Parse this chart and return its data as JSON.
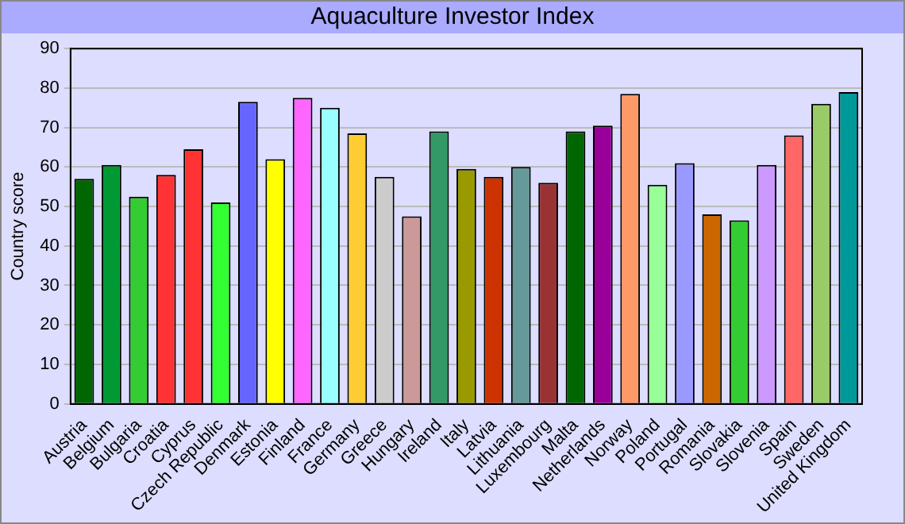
{
  "chart_data": {
    "type": "bar",
    "title": "Aquaculture Investor Index",
    "ylabel": "Country score",
    "categories": [
      "Austria",
      "Belgium",
      "Bulgaria",
      "Croatia",
      "Cyprus",
      "Czech Republic",
      "Denmark",
      "Estonia",
      "Finland",
      "France",
      "Germany",
      "Greece",
      "Hungary",
      "Ireland",
      "Italy",
      "Latvia",
      "Lithuania",
      "Luxembourg",
      "Malta",
      "Netherlands",
      "Norway",
      "Poland",
      "Portugal",
      "Romania",
      "Slovakia",
      "Slovenia",
      "Spain",
      "Sweden",
      "United Kingdom"
    ],
    "values": [
      57,
      60.5,
      52.5,
      58,
      64.5,
      51,
      76.5,
      62,
      77.5,
      75,
      68.5,
      57.5,
      47.5,
      69,
      59.5,
      57.5,
      60,
      56,
      69,
      70.5,
      78.5,
      55.5,
      61,
      48,
      46.5,
      60.5,
      68,
      76,
      79
    ],
    "colors": [
      "#006600",
      "#009933",
      "#33cc33",
      "#ff3333",
      "#ff3333",
      "#33ff33",
      "#6666ff",
      "#ffff00",
      "#ff66ff",
      "#99ffff",
      "#ffcc33",
      "#cccccc",
      "#cc9999",
      "#339966",
      "#999900",
      "#cc3300",
      "#669999",
      "#993333",
      "#006600",
      "#990099",
      "#ff9966",
      "#99ff99",
      "#9999ff",
      "#cc6600",
      "#33cc33",
      "#cc99ff",
      "#ff6666",
      "#99cc66",
      "#009999"
    ],
    "ylim": [
      0,
      90
    ],
    "yticks": [
      0,
      10,
      20,
      30,
      40,
      50,
      60,
      70,
      80,
      90
    ],
    "grid": "y",
    "legend": false
  }
}
